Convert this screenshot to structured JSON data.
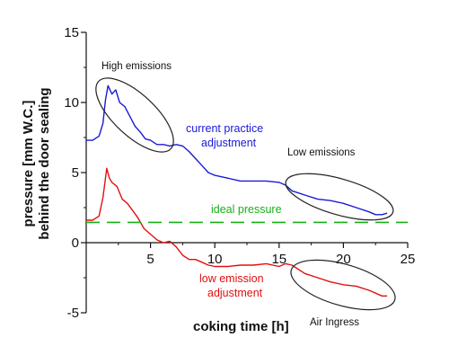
{
  "chart_data": {
    "type": "line",
    "xlabel": "coking time [h]",
    "ylabel_line1": "pressure [mm W.C.]",
    "ylabel_line2": "behind the door sealing",
    "xlim": [
      0,
      25
    ],
    "ylim": [
      -5,
      15
    ],
    "x_ticks": [
      5,
      10,
      15,
      20,
      25
    ],
    "y_ticks": [
      -5,
      0,
      5,
      10,
      15
    ],
    "x_tick_labels": [
      "5",
      "10",
      "15",
      "20",
      "25"
    ],
    "y_tick_labels": [
      "-5",
      "0",
      "5",
      "10",
      "15"
    ],
    "grid": false,
    "series": [
      {
        "name": "current practice adjustment",
        "color": "#1a1ad6",
        "x": [
          0,
          0.5,
          1.0,
          1.3,
          1.5,
          1.7,
          2.0,
          2.3,
          2.6,
          3.0,
          3.4,
          3.8,
          4.2,
          4.6,
          5.0,
          5.5,
          6.0,
          6.5,
          7.0,
          7.5,
          8.0,
          8.5,
          9.0,
          9.5,
          10.0,
          11.0,
          12.0,
          13.0,
          14.0,
          15.0,
          15.5,
          16.0,
          17.0,
          18.0,
          19.0,
          20.0,
          21.0,
          22.0,
          22.5,
          23.0,
          23.4
        ],
        "y": [
          7.3,
          7.3,
          7.6,
          8.5,
          10.2,
          11.2,
          10.6,
          10.9,
          10.0,
          9.7,
          9.0,
          8.3,
          7.9,
          7.4,
          7.3,
          7.0,
          7.0,
          6.9,
          7.0,
          6.9,
          6.5,
          6.0,
          5.5,
          5.0,
          4.8,
          4.6,
          4.4,
          4.4,
          4.4,
          4.3,
          4.1,
          3.7,
          3.4,
          3.1,
          3.0,
          2.8,
          2.5,
          2.2,
          2.0,
          2.0,
          2.1
        ]
      },
      {
        "name": "low emission adjustment",
        "color": "#e01010",
        "x": [
          0,
          0.5,
          1.0,
          1.3,
          1.6,
          1.8,
          2.0,
          2.4,
          2.8,
          3.2,
          3.6,
          4.0,
          4.5,
          5.0,
          5.5,
          6.0,
          6.5,
          7.0,
          7.5,
          8.0,
          8.5,
          9.0,
          9.5,
          10.0,
          11.0,
          12.0,
          13.0,
          14.0,
          15.0,
          15.5,
          16.0,
          17.0,
          18.0,
          19.0,
          20.0,
          21.0,
          22.0,
          23.0,
          23.4
        ],
        "y": [
          1.6,
          1.6,
          1.9,
          3.2,
          5.3,
          4.6,
          4.3,
          4.0,
          3.1,
          2.8,
          2.3,
          1.8,
          1.0,
          0.6,
          0.2,
          0.0,
          0.1,
          -0.3,
          -0.9,
          -1.2,
          -1.2,
          -1.4,
          -1.6,
          -1.7,
          -1.7,
          -1.6,
          -1.6,
          -1.5,
          -1.7,
          -1.5,
          -1.6,
          -2.2,
          -2.5,
          -2.8,
          -3.0,
          -3.1,
          -3.4,
          -3.8,
          -3.8
        ]
      },
      {
        "name": "ideal pressure",
        "color": "#18b018",
        "x": [
          0,
          25
        ],
        "y": [
          1.45,
          1.45
        ]
      }
    ],
    "annotations": {
      "high_emissions": "High emissions",
      "low_emissions": "Low emissions",
      "air_ingress": "Air Ingress",
      "current_practice_line1": "current practice",
      "current_practice_line2": "adjustment",
      "ideal_pressure": "ideal pressure",
      "low_emission_line1": "low emission",
      "low_emission_line2": "adjustment"
    }
  }
}
